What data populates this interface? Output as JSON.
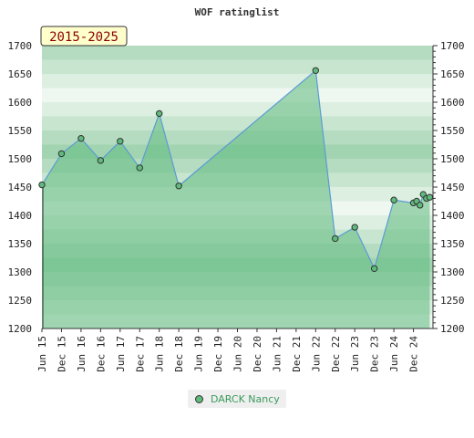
{
  "chart_data": {
    "type": "area",
    "title": "WOF ratinglist",
    "badge": "2015-2025",
    "ylim": [
      1200,
      1700
    ],
    "yticks": [
      1200,
      1250,
      1300,
      1350,
      1400,
      1450,
      1500,
      1550,
      1600,
      1650,
      1700
    ],
    "xlim": [
      "2015-06",
      "2025-06"
    ],
    "xticks": [
      "Jun 15",
      "Dec 15",
      "Jun 16",
      "Dec 16",
      "Jun 17",
      "Dec 17",
      "Jun 18",
      "Dec 18",
      "Jun 19",
      "Dec 19",
      "Jun 20",
      "Dec 20",
      "Jun 21",
      "Dec 21",
      "Jun 22",
      "Dec 22",
      "Jun 23",
      "Dec 23",
      "Jun 24",
      "Dec 24"
    ],
    "series": [
      {
        "name": "DARCK Nancy",
        "points": [
          [
            "2015-06",
            1454
          ],
          [
            "2015-12",
            1509
          ],
          [
            "2016-06",
            1536
          ],
          [
            "2016-12",
            1497
          ],
          [
            "2017-06",
            1531
          ],
          [
            "2017-12",
            1484
          ],
          [
            "2018-06",
            1580
          ],
          [
            "2018-12",
            1452
          ],
          [
            "2022-06",
            1656
          ],
          [
            "2022-12",
            1359
          ],
          [
            "2023-06",
            1379
          ],
          [
            "2023-12",
            1306
          ],
          [
            "2024-06",
            1427
          ],
          [
            "2024-12",
            1422
          ],
          [
            "2025-01",
            1425
          ],
          [
            "2025-02",
            1418
          ],
          [
            "2025-03",
            1437
          ],
          [
            "2025-04",
            1430
          ],
          [
            "2025-05",
            1432
          ]
        ]
      }
    ],
    "legend_position": "bottom",
    "colors": {
      "line": "#5b9bd5",
      "fill": "#5fba7d",
      "marker": "#5fba7d"
    }
  }
}
